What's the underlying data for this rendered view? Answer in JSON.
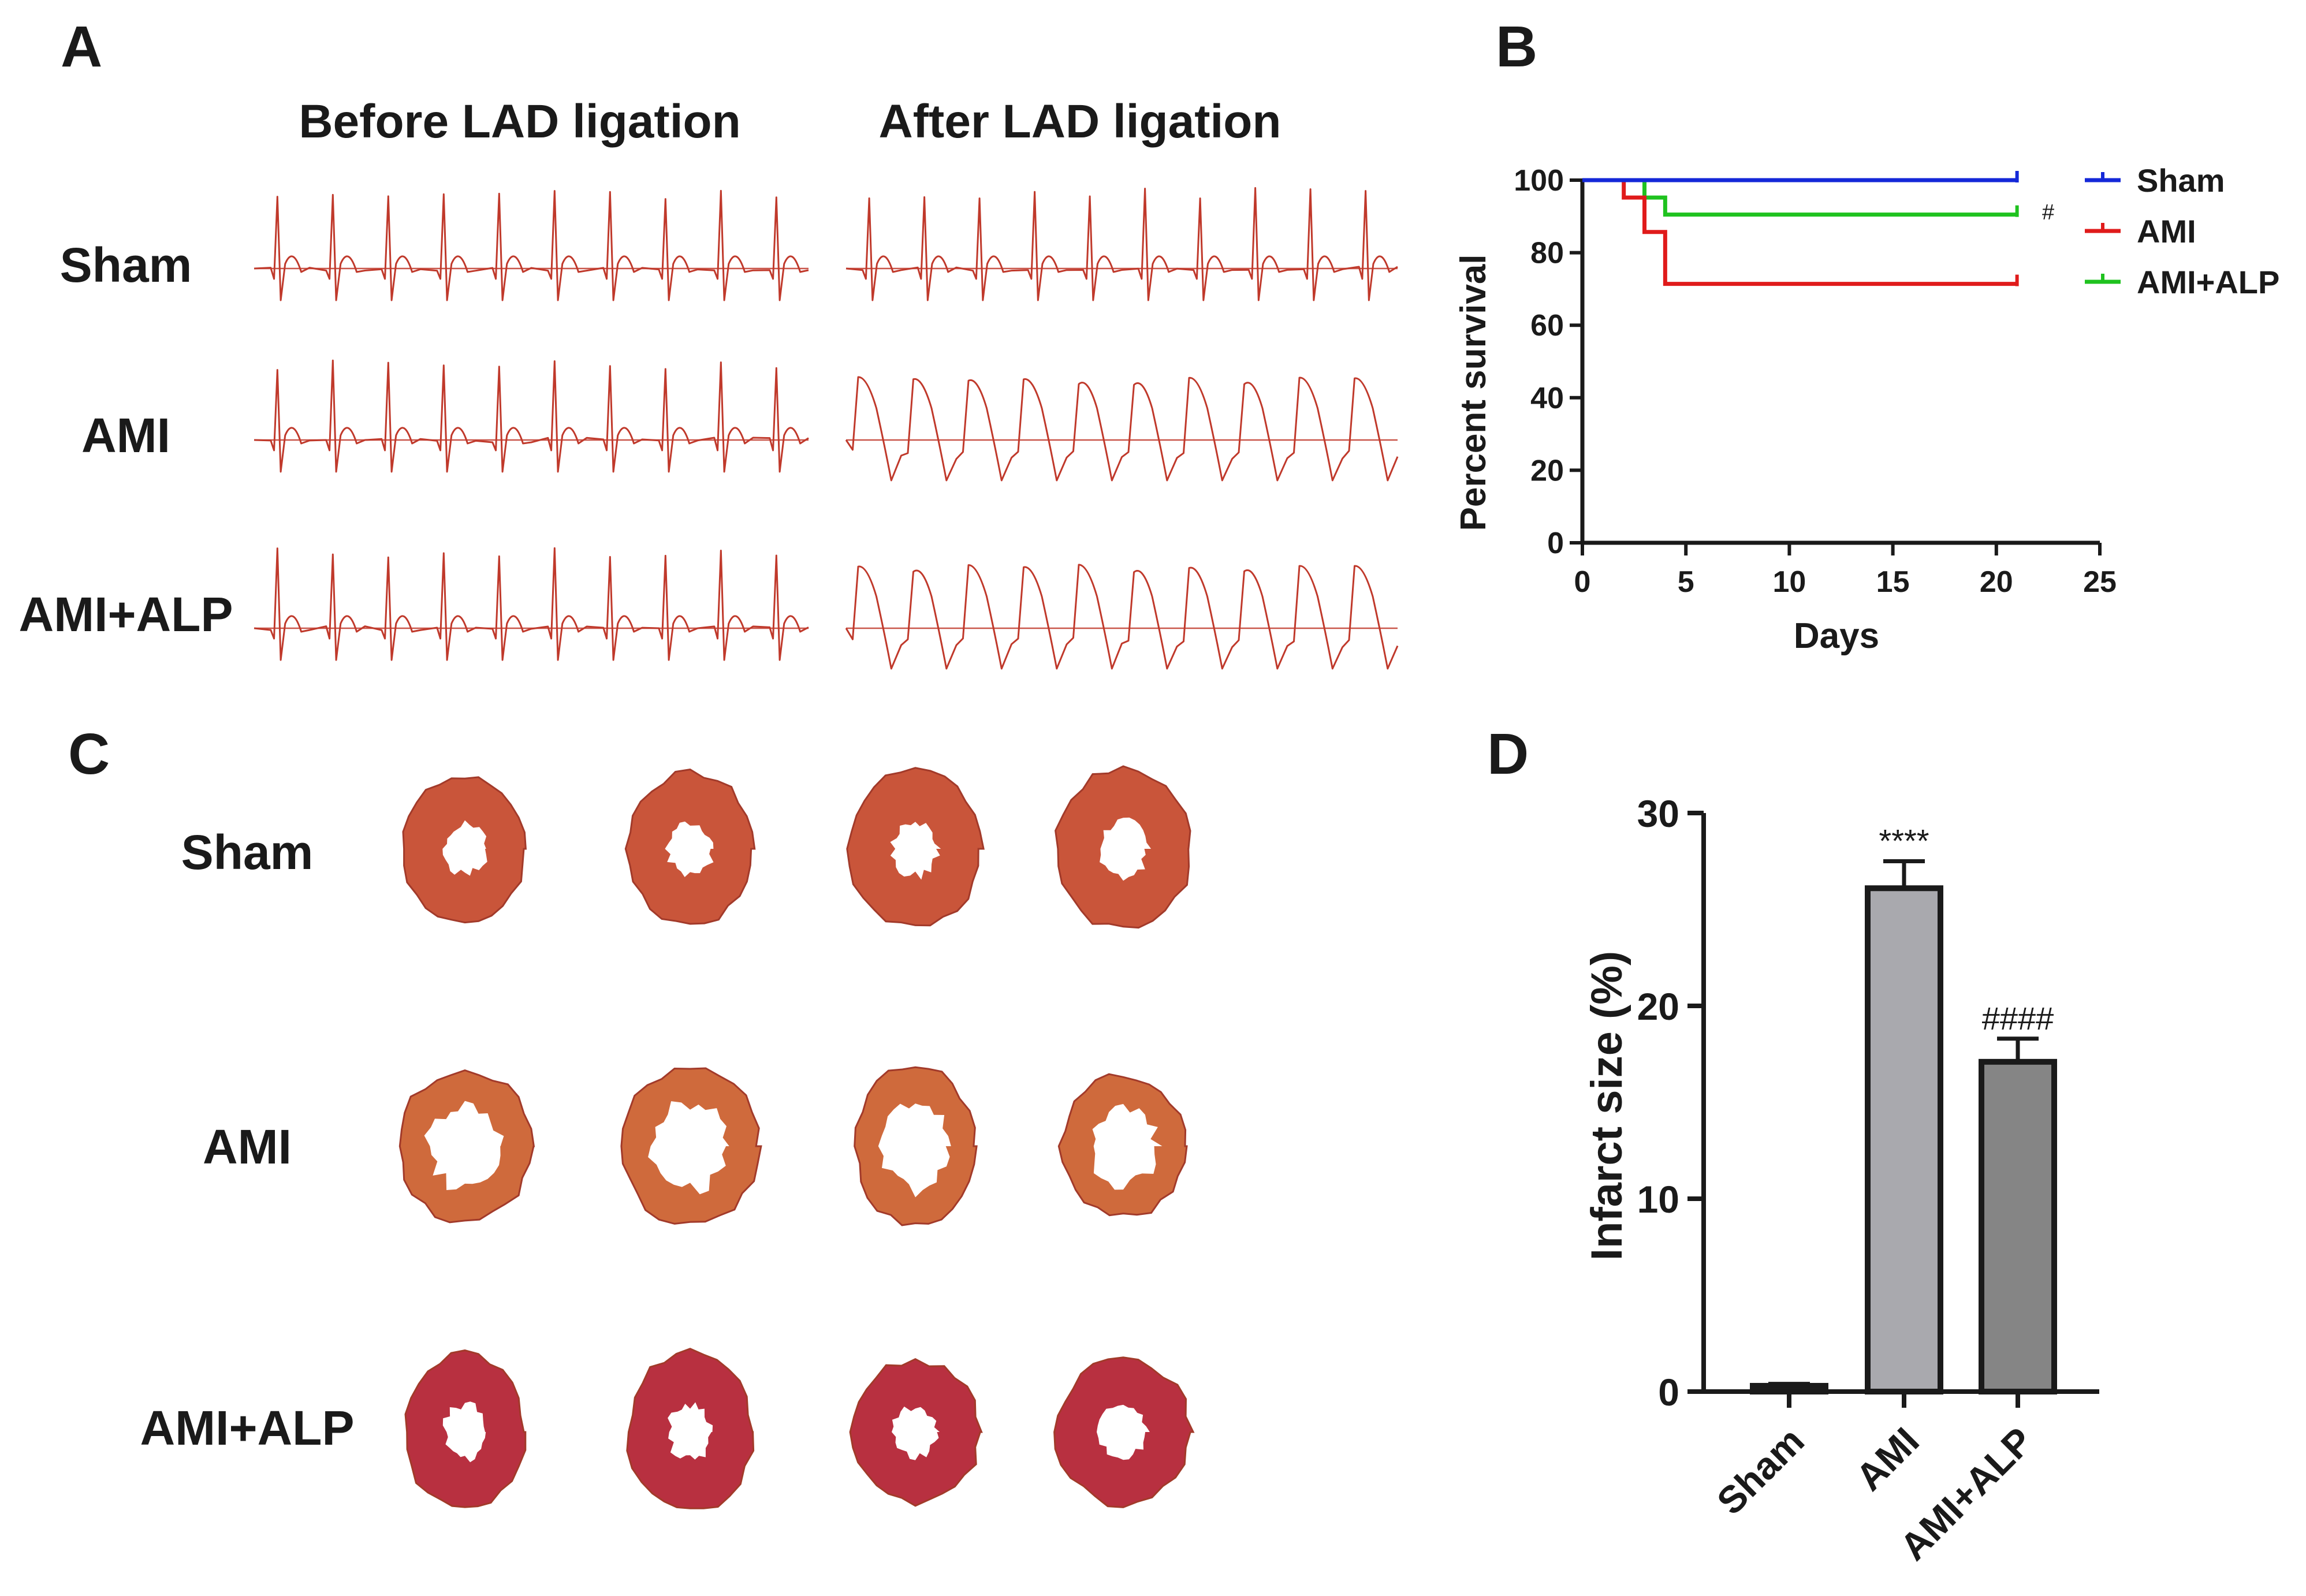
{
  "panels": {
    "a": "A",
    "b": "B",
    "c": "C",
    "d": "D"
  },
  "panel_a": {
    "col_before": "Before LAD ligation",
    "col_after": "After LAD ligation",
    "rows": [
      "Sham",
      "AMI",
      "AMI+ALP"
    ],
    "trace_color": "#c0392b",
    "trace_types": [
      {
        "before": "normal",
        "after": "normal"
      },
      {
        "before": "normal",
        "after": "st-elevation"
      },
      {
        "before": "normal",
        "after": "st-elevation"
      }
    ]
  },
  "panel_c": {
    "rows": [
      "Sham",
      "AMI",
      "AMI+ALP"
    ],
    "tissue_colors": [
      "#c9553a",
      "#cf6a3c",
      "#b83040"
    ]
  },
  "chart_data": [
    {
      "type": "line",
      "subtype": "kaplan-meier",
      "title": "",
      "xlabel": "Days",
      "ylabel": "Percent survival",
      "xlim": [
        0,
        25
      ],
      "ylim": [
        0,
        100
      ],
      "xticks": [
        0,
        5,
        10,
        15,
        20,
        25
      ],
      "yticks": [
        0,
        20,
        40,
        60,
        80,
        100
      ],
      "series": [
        {
          "name": "Sham",
          "color": "#1428d8",
          "points": [
            [
              0,
              100
            ],
            [
              21,
              100
            ]
          ],
          "censor_at": [
            21,
            100
          ]
        },
        {
          "name": "AMI",
          "color": "#e01b1b",
          "points": [
            [
              0,
              100
            ],
            [
              2,
              100
            ],
            [
              2,
              95.2
            ],
            [
              3,
              95.2
            ],
            [
              3,
              85.7
            ],
            [
              4,
              85.7
            ],
            [
              4,
              71.4
            ],
            [
              21,
              71.4
            ]
          ],
          "censor_at": [
            21,
            71.4
          ]
        },
        {
          "name": "AMI+ALP",
          "color": "#1fc21f",
          "points": [
            [
              0,
              100
            ],
            [
              3,
              100
            ],
            [
              3,
              95.2
            ],
            [
              4,
              95.2
            ],
            [
              4,
              90.5
            ],
            [
              21,
              90.5
            ]
          ],
          "censor_at": [
            21,
            90.5
          ]
        }
      ],
      "legend": [
        "Sham",
        "AMI",
        "AMI+ALP"
      ],
      "legend_position": "right",
      "annotation": "#"
    },
    {
      "type": "bar",
      "title": "",
      "xlabel": "",
      "ylabel": "Infarct size (%)",
      "ylim": [
        0,
        30
      ],
      "yticks": [
        0,
        10,
        20,
        30
      ],
      "categories": [
        "Sham",
        "AMI",
        "AMI+ALP"
      ],
      "values": [
        0.3,
        26.1,
        17.1
      ],
      "errors": [
        0.1,
        1.4,
        1.2
      ],
      "colors": [
        "#b8b8b8",
        "#a9a9ae",
        "#858585"
      ],
      "significance": [
        "",
        "****",
        "####"
      ]
    }
  ]
}
